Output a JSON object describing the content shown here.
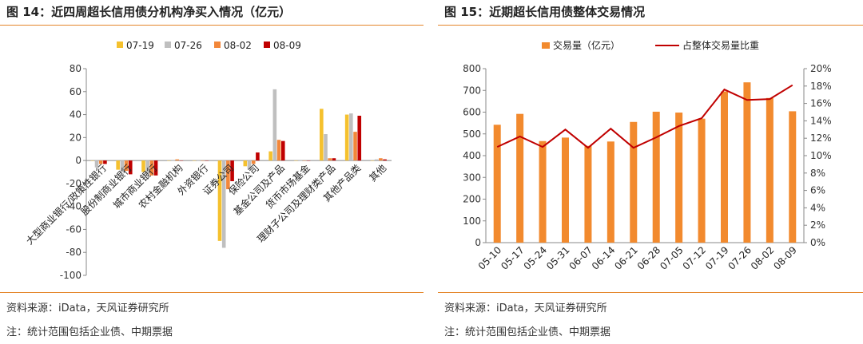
{
  "left": {
    "title": "图 14：近四周超长信用债分机构净买入情况（亿元）",
    "source": "资料来源：iData，天风证券研究所",
    "scope": "注：统计范围包括企业债、中期票据"
  },
  "right": {
    "title": "图 15：近期超长信用债整体交易情况",
    "source": "资料来源：iData，天风证券研究所",
    "scope": "注：统计范围包括企业债、中期票据"
  },
  "colors": {
    "accent": "#e4862a",
    "s0719": "#f5c12e",
    "s0726": "#bfbfbf",
    "s0802": "#f2873a",
    "s0809": "#c00000",
    "bar_volume": "#f28a2e",
    "line_share": "#c00000"
  },
  "chart_data": [
    {
      "type": "bar",
      "categories": [
        "大型商业银行/政策性银行",
        "股份制商业银行",
        "城市商业银行",
        "农村金融机构",
        "外资银行",
        "证券公司",
        "保险公司",
        "基金公司及产品",
        "货币市场基金",
        "理财子公司及理财类产品",
        "其他产品类",
        "其他"
      ],
      "series": [
        {
          "name": "07-19",
          "values": [
            0,
            -8,
            -10,
            0,
            0,
            -70,
            -5,
            8,
            0,
            45,
            40,
            0
          ]
        },
        {
          "name": "07-26",
          "values": [
            -6,
            -10,
            -12,
            0,
            0,
            -76,
            -8,
            62,
            0,
            23,
            41,
            1
          ]
        },
        {
          "name": "08-02",
          "values": [
            -3,
            -9,
            -13,
            1,
            0,
            -25,
            -3,
            18,
            0,
            2,
            25,
            2
          ]
        },
        {
          "name": "08-09",
          "values": [
            -3,
            -12,
            -13,
            0,
            0,
            -18,
            7,
            17,
            0,
            2,
            39,
            1
          ]
        }
      ],
      "ylim": [
        -100,
        80
      ],
      "yticks": [
        "80",
        "60",
        "40",
        "20",
        "0",
        "-20",
        "-40",
        "-60",
        "-80",
        "-100"
      ],
      "legend": "top-center",
      "grid": false
    },
    {
      "type": "bar",
      "categories": [
        "05-10",
        "05-17",
        "05-24",
        "05-31",
        "06-07",
        "06-14",
        "06-21",
        "06-28",
        "07-05",
        "07-12",
        "07-19",
        "07-26",
        "08-02",
        "08-09"
      ],
      "series": [
        {
          "name": "交易量（亿元）",
          "type": "bar",
          "axis": "left",
          "values": [
            542,
            592,
            467,
            483,
            445,
            465,
            555,
            602,
            598,
            570,
            695,
            737,
            665,
            604
          ]
        },
        {
          "name": "占整体交易量比重",
          "type": "line",
          "axis": "right",
          "values": [
            11.0,
            12.2,
            11.0,
            13.0,
            10.9,
            13.1,
            10.9,
            12.1,
            13.4,
            14.3,
            17.6,
            16.4,
            16.5,
            18.1
          ]
        }
      ],
      "ylim_left": [
        0,
        800
      ],
      "yticks_left": [
        "800",
        "700",
        "600",
        "500",
        "400",
        "300",
        "200",
        "100",
        "0"
      ],
      "ylim_right": [
        0,
        20
      ],
      "yticks_right": [
        "20%",
        "18%",
        "16%",
        "14%",
        "12%",
        "10%",
        "8%",
        "6%",
        "4%",
        "2%",
        "0%"
      ],
      "legend": "top-center",
      "grid": false
    }
  ]
}
